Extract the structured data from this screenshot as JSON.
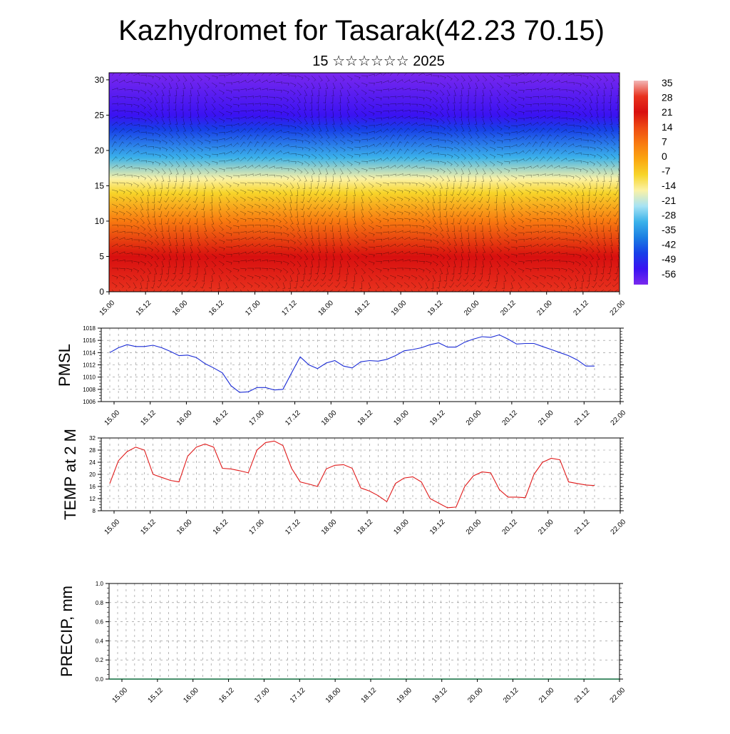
{
  "header": {
    "title": "Kazhydromet for Tasarak(42.23 70.15)",
    "subtitle": "15 ☆☆☆☆☆☆ 2025"
  },
  "x_tick_labels": [
    "15.00",
    "15.12",
    "16.00",
    "16.12",
    "17.00",
    "17.12",
    "18.00",
    "18.12",
    "19.00",
    "19.12",
    "20.00",
    "20.12",
    "21.00",
    "21.12",
    "22.00"
  ],
  "chart_data": [
    {
      "type": "heatmap",
      "title": "",
      "xlabel": "",
      "ylabel": "",
      "x_categories": [
        "15.00",
        "15.12",
        "16.00",
        "16.12",
        "17.00",
        "17.12",
        "18.00",
        "18.12",
        "19.00",
        "19.12",
        "20.00",
        "20.12",
        "21.00",
        "21.12",
        "22.00"
      ],
      "ylim": [
        0,
        31
      ],
      "yticks": [
        0,
        5,
        10,
        15,
        20,
        25,
        30
      ],
      "colorbar": {
        "labels": [
          "35",
          "28",
          "21",
          "14",
          "7",
          "0",
          "-7",
          "-14",
          "-21",
          "-28",
          "-35",
          "-42",
          "-49",
          "-56"
        ],
        "colors": [
          "#f2b6b6",
          "#e8321e",
          "#d80f0f",
          "#ee4a12",
          "#f87a10",
          "#fba60f",
          "#f7d52a",
          "#fbf2a6",
          "#a7e3f4",
          "#3bb2ea",
          "#1b7ee3",
          "#173fe8",
          "#3a12f2",
          "#7a28ee"
        ]
      },
      "temperature_profile": [
        {
          "height": 0,
          "temp": 28
        },
        {
          "height": 5,
          "temp": 21
        },
        {
          "height": 10,
          "temp": 7
        },
        {
          "height": 14,
          "temp": -7
        },
        {
          "height": 16,
          "temp": -14
        },
        {
          "height": 19,
          "temp": -28
        },
        {
          "height": 23,
          "temp": -42
        },
        {
          "height": 25,
          "temp": -49
        },
        {
          "height": 31,
          "temp": -56
        }
      ]
    },
    {
      "type": "line",
      "ylabel": "PMSL",
      "ylim": [
        1006,
        1018
      ],
      "yticks": [
        1006,
        1008,
        1010,
        1012,
        1014,
        1016,
        1018
      ],
      "series": [
        {
          "values": [
            1014.0,
            1014.8,
            1015.3,
            1015.0,
            1015.0,
            1015.2,
            1014.8,
            1014.2,
            1013.5,
            1013.6,
            1013.2,
            1012.2,
            1011.5,
            1010.7,
            1008.6,
            1007.5,
            1007.6,
            1008.3,
            1008.3,
            1007.9,
            1008.0,
            1010.7,
            1013.3,
            1012.0,
            1011.4,
            1012.3,
            1012.7,
            1011.8,
            1011.5,
            1012.5,
            1012.7,
            1012.6,
            1012.9,
            1013.5,
            1014.3,
            1014.5,
            1014.8,
            1015.3,
            1015.6,
            1014.9,
            1014.9,
            1015.7,
            1016.2,
            1016.6,
            1016.5,
            1016.9,
            1016.2,
            1015.4,
            1015.5,
            1015.5,
            1015.0,
            1014.5,
            1014.0,
            1013.5,
            1012.8,
            1011.8,
            1011.8
          ]
        }
      ]
    },
    {
      "type": "line",
      "ylabel": "TEMP at 2 M",
      "ylim": [
        8,
        32
      ],
      "yticks": [
        8,
        12,
        16,
        20,
        24,
        28,
        32
      ],
      "series": [
        {
          "values": [
            17,
            24.5,
            27.5,
            29,
            28,
            20,
            19,
            18,
            17.5,
            26,
            29,
            30,
            29,
            22,
            21.8,
            21.2,
            20.5,
            28,
            30.5,
            31,
            29.5,
            22,
            17.5,
            16.8,
            16,
            21.8,
            23,
            23.2,
            22,
            15.5,
            14.5,
            13,
            11,
            17,
            18.8,
            19.2,
            17.5,
            12,
            10.5,
            9,
            9.2,
            16,
            19.5,
            20.8,
            20.5,
            15,
            12.5,
            12.5,
            12.3,
            20,
            24,
            25.3,
            24.8,
            17.5,
            17,
            16.5,
            16.3
          ]
        }
      ]
    },
    {
      "type": "bar",
      "ylabel": "PRECIP, mm",
      "ylim": [
        0,
        1
      ],
      "yticks": [
        "0.0",
        "0.2",
        "0.4",
        "0.6",
        "0.8",
        "1.0"
      ],
      "values": [
        0,
        0,
        0,
        0,
        0,
        0,
        0,
        0,
        0,
        0,
        0,
        0,
        0,
        0,
        0,
        0,
        0,
        0,
        0,
        0,
        0,
        0,
        0,
        0,
        0,
        0,
        0,
        0,
        0,
        0,
        0,
        0,
        0,
        0,
        0,
        0,
        0,
        0,
        0,
        0,
        0,
        0,
        0,
        0,
        0,
        0,
        0,
        0,
        0,
        0,
        0,
        0,
        0,
        0,
        0,
        0,
        0
      ]
    }
  ]
}
